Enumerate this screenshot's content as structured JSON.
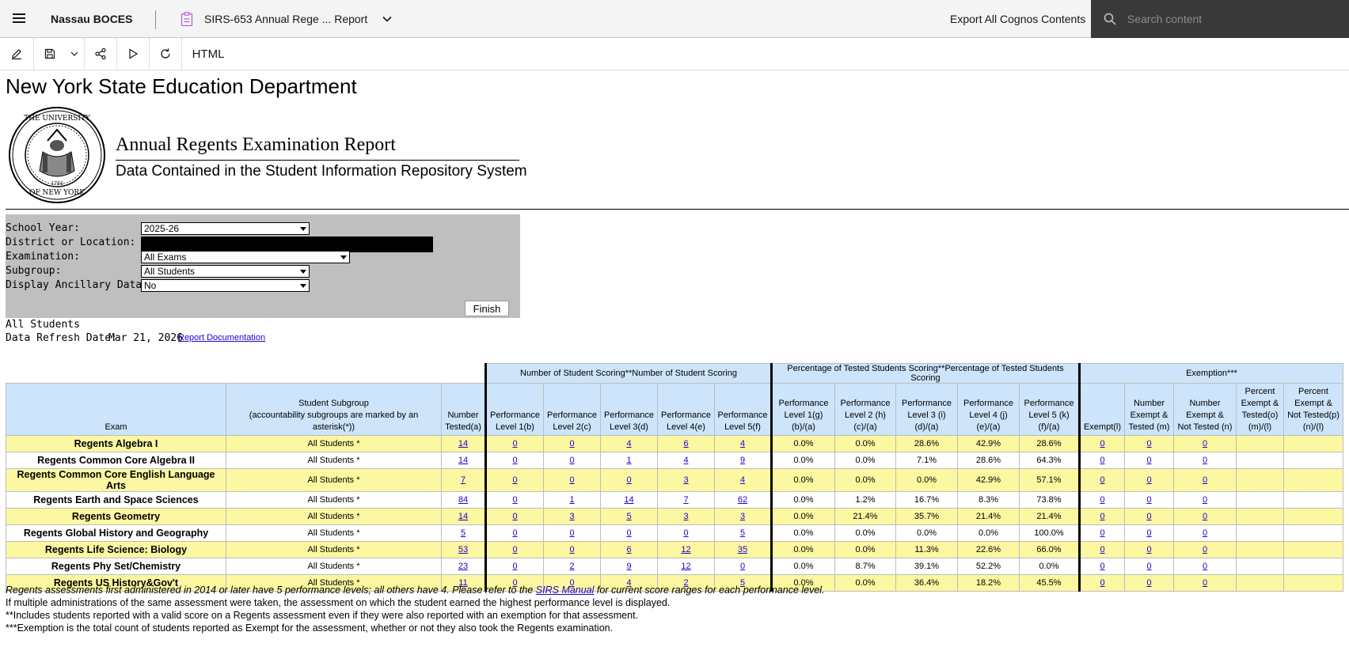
{
  "header": {
    "brand": "Nassau BOCES",
    "report_title": "SIRS-653 Annual Rege ... Report",
    "export_label": "Export All Cognos Contents",
    "search_placeholder": "Search content"
  },
  "toolbar": {
    "format_label": "HTML",
    "icons": [
      "pencil-icon",
      "save-icon",
      "chevron-down-icon",
      "share-icon",
      "run-icon",
      "refresh-icon"
    ]
  },
  "report": {
    "org": "New York State Education Department",
    "title": "Annual Regents Examination Report",
    "subtitle": "Data Contained in the Student Information Repository System"
  },
  "prompts": {
    "school_year_label": "School Year:",
    "school_year_value": "2025-26",
    "district_label": "District or Location:",
    "examination_label": "Examination:",
    "examination_value": "All Exams",
    "subgroup_label": "Subgroup:",
    "subgroup_value": "All Students",
    "ancillary_label": "Display Ancillary Data:",
    "ancillary_value": "No",
    "finish_label": "Finish"
  },
  "info": {
    "subgroup": "All Students",
    "refresh_label": "Data Refresh Date:",
    "refresh_date": "Mar 21, 2026",
    "doc_link": "Report Documentation"
  },
  "table": {
    "group_headers": [
      "Number of Student Scoring**Number of Student Scoring",
      "Percentage of Tested Students Scoring**Percentage of Tested Students Scoring",
      "Exemption***"
    ],
    "headers": {
      "exam": "Exam",
      "subgroup_1": "Student Subgroup",
      "subgroup_2": "(accountability subgroups are marked by an asterisk(*))",
      "tested_1": "Number",
      "tested_2": "Tested(a)",
      "num": [
        [
          "Performance",
          "Level 1(b)"
        ],
        [
          "Performance",
          "Level 2(c)"
        ],
        [
          "Performance",
          "Level 3(d)"
        ],
        [
          "Performance",
          "Level 4(e)"
        ],
        [
          "Performance",
          "Level 5(f)"
        ]
      ],
      "pct": [
        [
          "Performance",
          "Level 1(g)",
          "(b)/(a)"
        ],
        [
          "Performance",
          "Level 2 (h)",
          "(c)/(a)"
        ],
        [
          "Performance",
          "Level 3 (i)",
          "(d)/(a)"
        ],
        [
          "Performance",
          "Level 4 (j)",
          "(e)/(a)"
        ],
        [
          "Performance",
          "Level 5 (k)",
          "(f)/(a)"
        ]
      ],
      "exempt": "Exempt(l)",
      "exempt_tested": [
        "Number",
        "Exempt &",
        "Tested (m)"
      ],
      "exempt_not_tested": [
        "Number",
        "Exempt &",
        "Not Tested (n)"
      ],
      "pct_exempt_tested": [
        "Percent",
        "Exempt &",
        "Tested(o)",
        "(m)/(l)"
      ],
      "pct_exempt_not_tested": [
        "Percent",
        "Exempt &",
        "Not Tested(p)",
        "(n)/(l)"
      ]
    },
    "rows": [
      {
        "exam": "Regents Algebra I",
        "subgroup": "All Students *",
        "tested": "14",
        "num": [
          "0",
          "0",
          "4",
          "6",
          "4"
        ],
        "pct": [
          "0.0%",
          "0.0%",
          "28.6%",
          "42.9%",
          "28.6%"
        ],
        "exempt": [
          "0",
          "0",
          "0"
        ],
        "pct_exempt": [
          "",
          ""
        ]
      },
      {
        "exam": "Regents Common Core Algebra II",
        "subgroup": "All Students *",
        "tested": "14",
        "num": [
          "0",
          "0",
          "1",
          "4",
          "9"
        ],
        "pct": [
          "0.0%",
          "0.0%",
          "7.1%",
          "28.6%",
          "64.3%"
        ],
        "exempt": [
          "0",
          "0",
          "0"
        ],
        "pct_exempt": [
          "",
          ""
        ]
      },
      {
        "exam": "Regents Common Core English Language Arts",
        "subgroup": "All Students *",
        "tested": "7",
        "num": [
          "0",
          "0",
          "0",
          "3",
          "4"
        ],
        "pct": [
          "0.0%",
          "0.0%",
          "0.0%",
          "42.9%",
          "57.1%"
        ],
        "exempt": [
          "0",
          "0",
          "0"
        ],
        "pct_exempt": [
          "",
          ""
        ]
      },
      {
        "exam": "Regents Earth and Space Sciences",
        "subgroup": "All Students *",
        "tested": "84",
        "num": [
          "0",
          "1",
          "14",
          "7",
          "62"
        ],
        "pct": [
          "0.0%",
          "1.2%",
          "16.7%",
          "8.3%",
          "73.8%"
        ],
        "exempt": [
          "0",
          "0",
          "0"
        ],
        "pct_exempt": [
          "",
          ""
        ]
      },
      {
        "exam": "Regents Geometry",
        "subgroup": "All Students *",
        "tested": "14",
        "num": [
          "0",
          "3",
          "5",
          "3",
          "3"
        ],
        "pct": [
          "0.0%",
          "21.4%",
          "35.7%",
          "21.4%",
          "21.4%"
        ],
        "exempt": [
          "0",
          "0",
          "0"
        ],
        "pct_exempt": [
          "",
          ""
        ]
      },
      {
        "exam": "Regents Global History and Geography",
        "subgroup": "All Students *",
        "tested": "5",
        "num": [
          "0",
          "0",
          "0",
          "0",
          "5"
        ],
        "pct": [
          "0.0%",
          "0.0%",
          "0.0%",
          "0.0%",
          "100.0%"
        ],
        "exempt": [
          "0",
          "0",
          "0"
        ],
        "pct_exempt": [
          "",
          ""
        ]
      },
      {
        "exam": "Regents Life Science: Biology",
        "subgroup": "All Students *",
        "tested": "53",
        "num": [
          "0",
          "0",
          "6",
          "12",
          "35"
        ],
        "pct": [
          "0.0%",
          "0.0%",
          "11.3%",
          "22.6%",
          "66.0%"
        ],
        "exempt": [
          "0",
          "0",
          "0"
        ],
        "pct_exempt": [
          "",
          ""
        ]
      },
      {
        "exam": "Regents Phy Set/Chemistry",
        "subgroup": "All Students *",
        "tested": "23",
        "num": [
          "0",
          "2",
          "9",
          "12",
          "0"
        ],
        "pct": [
          "0.0%",
          "8.7%",
          "39.1%",
          "52.2%",
          "0.0%"
        ],
        "exempt": [
          "0",
          "0",
          "0"
        ],
        "pct_exempt": [
          "",
          ""
        ]
      },
      {
        "exam": "Regents US History&Gov't",
        "subgroup": "All Students *",
        "tested": "11",
        "num": [
          "0",
          "0",
          "4",
          "2",
          "5"
        ],
        "pct": [
          "0.0%",
          "0.0%",
          "36.4%",
          "18.2%",
          "45.5%"
        ],
        "exempt": [
          "0",
          "0",
          "0"
        ],
        "pct_exempt": [
          "",
          ""
        ]
      }
    ]
  },
  "footnotes": {
    "line1_a": "Regents assessments first administered in 2014 or later have 5 performance levels; all others have 4. Please refer to the ",
    "line1_link": "SIRS Manual",
    "line1_b": " for current score ranges for each performance level.",
    "line2": "If multiple administrations of the same assessment were taken, the assessment on which the student earned the highest performance level is displayed.",
    "line3": "**Includes students reported with a valid score on a Regents assessment even if they were also reported with an exemption for that assessment.",
    "line4": "***Exemption is the total count of students reported as Exempt for the assessment, whether or not they also took the Regents examination."
  }
}
